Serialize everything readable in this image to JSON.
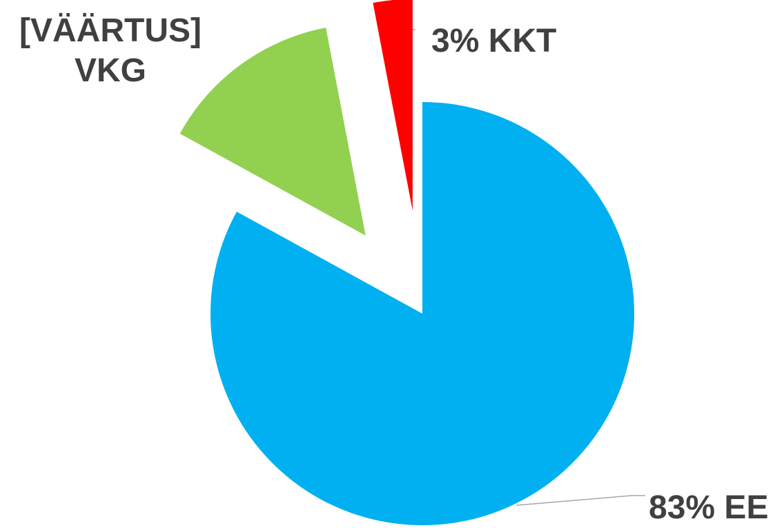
{
  "chart_data": {
    "type": "pie",
    "categories": [
      "EE",
      "VKG",
      "KKT"
    ],
    "values": [
      83,
      14,
      3
    ],
    "value_labels": [
      "83%",
      "[VÄÄRTUS]",
      "3%"
    ],
    "colors": [
      "#00b0f0",
      "#92d050",
      "#ff0000"
    ]
  }
}
